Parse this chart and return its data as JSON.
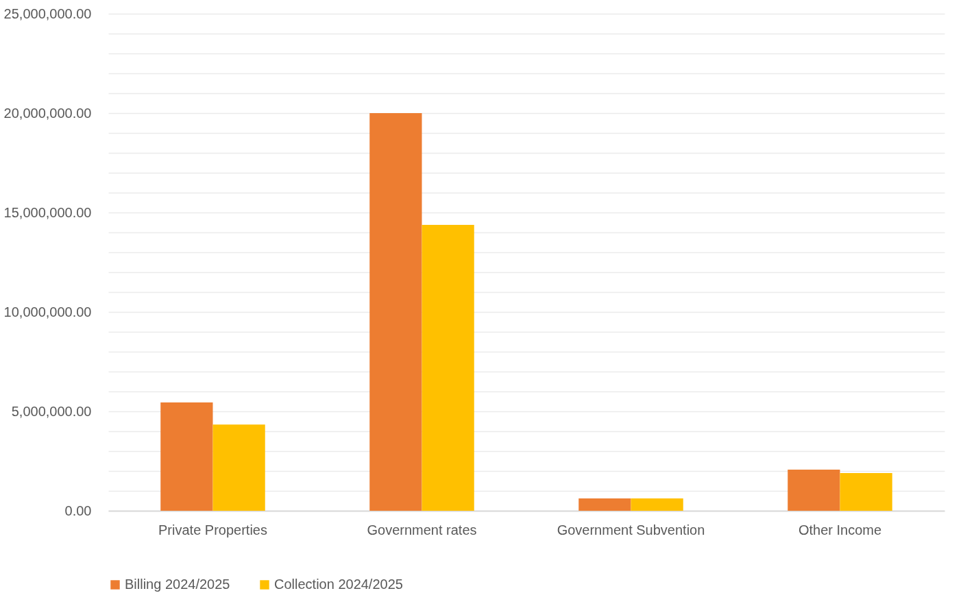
{
  "chart_data": {
    "type": "bar",
    "categories": [
      "Private Properties",
      "Government rates",
      "Government Subvention",
      "Other Income"
    ],
    "series": [
      {
        "name": "Billing 2024/2025",
        "color": "#ed7d31",
        "values": [
          5450000,
          20000000,
          620000,
          2070000
        ]
      },
      {
        "name": "Collection 2024/2025",
        "color": "#ffc000",
        "values": [
          4340000,
          14380000,
          620000,
          1900000
        ]
      }
    ],
    "ylim": [
      0,
      25000000
    ],
    "yticks": [
      {
        "value": 0,
        "label": "0.00"
      },
      {
        "value": 1000000,
        "label": null
      },
      {
        "value": 2000000,
        "label": null
      },
      {
        "value": 3000000,
        "label": null
      },
      {
        "value": 4000000,
        "label": null
      },
      {
        "value": 5000000,
        "label": "5,000,000.00"
      },
      {
        "value": 6000000,
        "label": null
      },
      {
        "value": 7000000,
        "label": null
      },
      {
        "value": 8000000,
        "label": null
      },
      {
        "value": 9000000,
        "label": null
      },
      {
        "value": 10000000,
        "label": "10,000,000.00"
      },
      {
        "value": 11000000,
        "label": null
      },
      {
        "value": 12000000,
        "label": null
      },
      {
        "value": 13000000,
        "label": null
      },
      {
        "value": 14000000,
        "label": null
      },
      {
        "value": 15000000,
        "label": "15,000,000.00"
      },
      {
        "value": 16000000,
        "label": null
      },
      {
        "value": 17000000,
        "label": null
      },
      {
        "value": 18000000,
        "label": null
      },
      {
        "value": 19000000,
        "label": null
      },
      {
        "value": 20000000,
        "label": "20,000,000.00"
      },
      {
        "value": 21000000,
        "label": null
      },
      {
        "value": 22000000,
        "label": null
      },
      {
        "value": 23000000,
        "label": null
      },
      {
        "value": 24000000,
        "label": null
      },
      {
        "value": 25000000,
        "label": "25,000,000.00"
      }
    ],
    "grid": true,
    "legend": "bottom"
  }
}
